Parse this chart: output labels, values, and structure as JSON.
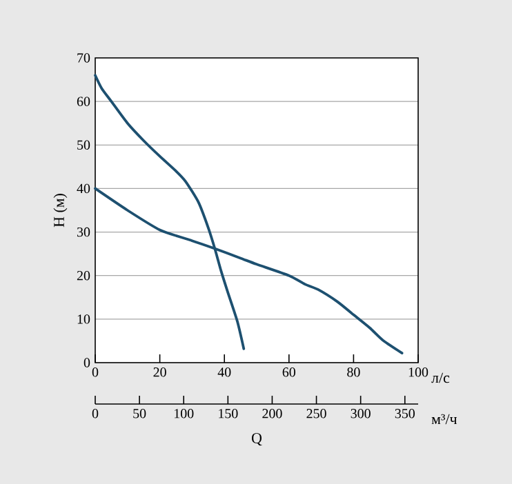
{
  "chart_data": {
    "type": "line",
    "xlabel": "Q",
    "ylabel": "H (м)",
    "xlim": [
      0,
      100
    ],
    "xticks": [
      0,
      20,
      40,
      60,
      80,
      100
    ],
    "x2lim": [
      0,
      365
    ],
    "x2ticks": [
      0,
      50,
      100,
      150,
      200,
      250,
      300,
      350
    ],
    "ylim": [
      0,
      70
    ],
    "yticks": [
      0,
      10,
      20,
      30,
      40,
      50,
      60,
      70
    ],
    "grid": "y",
    "line_style": "solid",
    "marker": "none",
    "annotations": [
      "л/с",
      "м³/ч"
    ],
    "series": [
      {
        "color": "#1d5070",
        "x": [
          0,
          2,
          5,
          10,
          15,
          20,
          25,
          28,
          32,
          35,
          37,
          39,
          41,
          44,
          46
        ],
        "values": [
          66,
          63,
          60,
          55,
          51,
          47.4,
          44,
          41.6,
          36.8,
          31,
          26.3,
          21,
          16.3,
          9.5,
          3.2
        ]
      },
      {
        "color": "#1d5070",
        "x": [
          0,
          10,
          20,
          30,
          37,
          45,
          50,
          60,
          65,
          69,
          75,
          80,
          85,
          89,
          95
        ],
        "values": [
          40,
          35,
          30.5,
          28,
          26.2,
          24,
          22.6,
          20,
          18,
          16.8,
          14,
          11,
          8,
          5.2,
          2.2
        ]
      }
    ]
  }
}
